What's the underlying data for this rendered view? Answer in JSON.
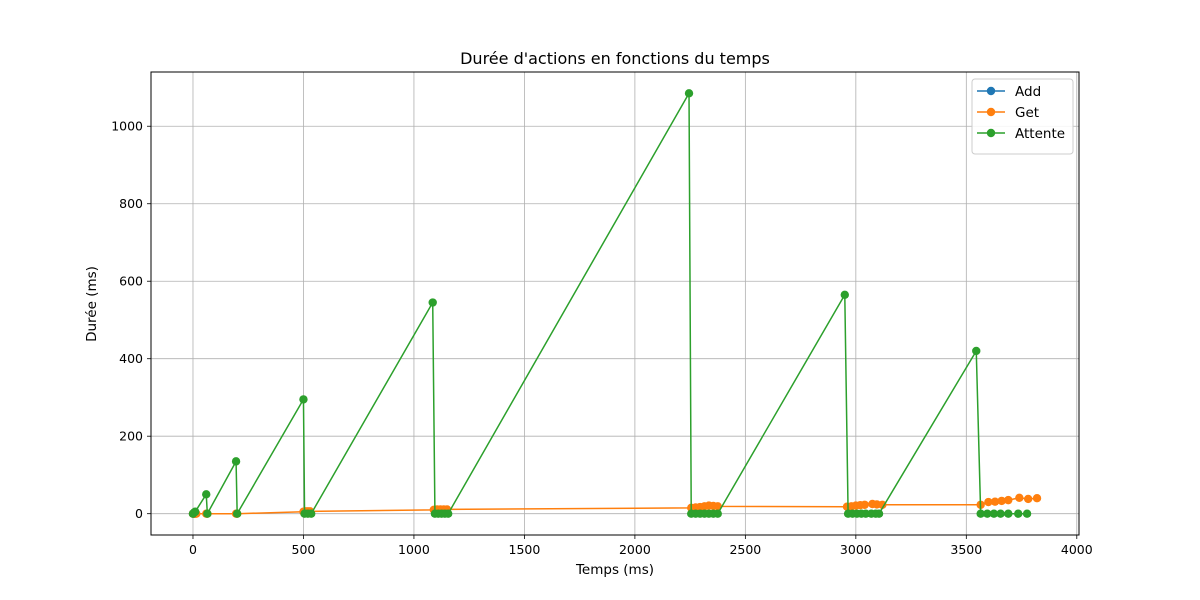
{
  "chart_data": {
    "type": "line",
    "title": "Durée d'actions en fonctions du temps",
    "xlabel": "Temps (ms)",
    "ylabel": "Durée (ms)",
    "xlim": [
      -190,
      4010
    ],
    "ylim": [
      -55,
      1140
    ],
    "xticks": [
      0,
      500,
      1000,
      1500,
      2000,
      2500,
      3000,
      3500,
      4000
    ],
    "yticks": [
      0,
      200,
      400,
      600,
      800,
      1000
    ],
    "grid": true,
    "legend_position": "top-right",
    "series": [
      {
        "name": "Add",
        "color": "#1f77b4",
        "points": [
          [
            0,
            0
          ],
          [
            5,
            0
          ],
          [
            10,
            0
          ]
        ]
      },
      {
        "name": "Get",
        "color": "#ff7f0e",
        "points": [
          [
            0,
            0
          ],
          [
            5,
            0
          ],
          [
            10,
            0
          ],
          [
            15,
            0
          ],
          [
            60,
            0
          ],
          [
            65,
            0
          ],
          [
            195,
            0
          ],
          [
            200,
            0
          ],
          [
            500,
            5
          ],
          [
            510,
            6
          ],
          [
            520,
            6
          ],
          [
            530,
            6
          ],
          [
            1090,
            10
          ],
          [
            1105,
            11
          ],
          [
            1120,
            11
          ],
          [
            1135,
            11
          ],
          [
            1150,
            11
          ],
          [
            2255,
            15
          ],
          [
            2275,
            16
          ],
          [
            2295,
            17
          ],
          [
            2315,
            19
          ],
          [
            2335,
            21
          ],
          [
            2355,
            20
          ],
          [
            2375,
            19
          ],
          [
            2960,
            18
          ],
          [
            2980,
            19
          ],
          [
            3000,
            21
          ],
          [
            3020,
            22
          ],
          [
            3040,
            23
          ],
          [
            3075,
            25
          ],
          [
            3095,
            24
          ],
          [
            3120,
            23
          ],
          [
            3565,
            23
          ],
          [
            3600,
            30
          ],
          [
            3630,
            31
          ],
          [
            3660,
            33
          ],
          [
            3690,
            35
          ],
          [
            3740,
            41
          ],
          [
            3780,
            38
          ],
          [
            3820,
            40
          ]
        ]
      },
      {
        "name": "Attente",
        "color": "#2ca02c",
        "points": [
          [
            0,
            0
          ],
          [
            5,
            3
          ],
          [
            10,
            5
          ],
          [
            60,
            50
          ],
          [
            65,
            0
          ],
          [
            195,
            135
          ],
          [
            200,
            0
          ],
          [
            500,
            295
          ],
          [
            505,
            0
          ],
          [
            520,
            0
          ],
          [
            535,
            0
          ],
          [
            1085,
            545
          ],
          [
            1095,
            0
          ],
          [
            1110,
            0
          ],
          [
            1125,
            0
          ],
          [
            1140,
            0
          ],
          [
            1155,
            0
          ],
          [
            2245,
            1085
          ],
          [
            2255,
            0
          ],
          [
            2275,
            0
          ],
          [
            2295,
            0
          ],
          [
            2315,
            0
          ],
          [
            2335,
            0
          ],
          [
            2355,
            0
          ],
          [
            2375,
            0
          ],
          [
            2950,
            565
          ],
          [
            2965,
            0
          ],
          [
            2985,
            0
          ],
          [
            3005,
            0
          ],
          [
            3025,
            0
          ],
          [
            3045,
            0
          ],
          [
            3070,
            0
          ],
          [
            3090,
            0
          ],
          [
            3105,
            0
          ],
          [
            3545,
            420
          ],
          [
            3565,
            0
          ],
          [
            3595,
            0
          ],
          [
            3625,
            0
          ],
          [
            3655,
            0
          ],
          [
            3690,
            0
          ],
          [
            3735,
            0
          ],
          [
            3775,
            0
          ]
        ]
      }
    ]
  }
}
